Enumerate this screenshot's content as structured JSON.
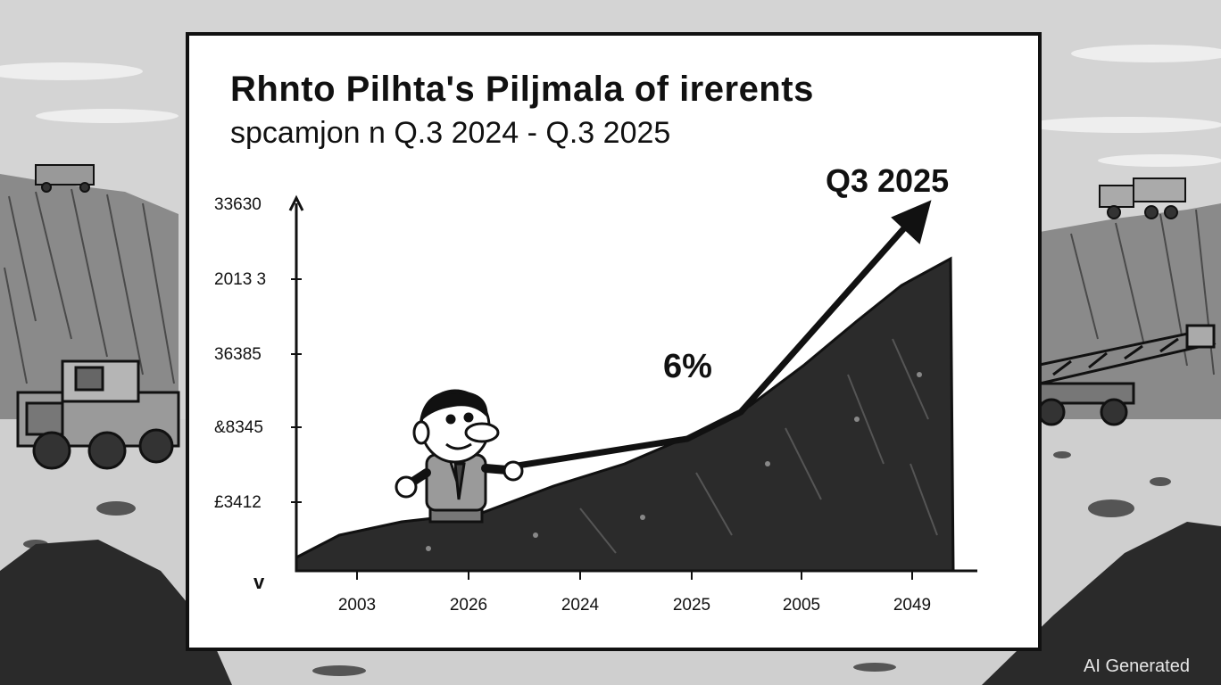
{
  "board": {
    "title": "Rhnto Pilhta's Piljmala of irerents",
    "subtitle": "spcamjon n Q.3 2024 - Q.3 2025",
    "peak_label": "Q3 2025",
    "growth_label": "6%",
    "y_bottom_mark": "v"
  },
  "chart_data": {
    "type": "area",
    "title": "Rhnto Pilhta's Piljmala of irerents",
    "subtitle": "spcamjon n Q.3 2024 - Q.3 2025",
    "y_tick_labels": [
      "33630",
      "2013 3",
      "36385",
      "&8345",
      "£3412"
    ],
    "x_tick_labels": [
      "2003",
      "2026",
      "2024",
      "2025",
      "2005",
      "2049"
    ],
    "annotations": [
      "Q3 2025",
      "6%"
    ],
    "grid": false
  },
  "watermark": "AI Generated",
  "colors": {
    "sky": "#d7d7d7",
    "board": "#ffffff",
    "mound": "#2b2b2b",
    "ink": "#111111"
  }
}
